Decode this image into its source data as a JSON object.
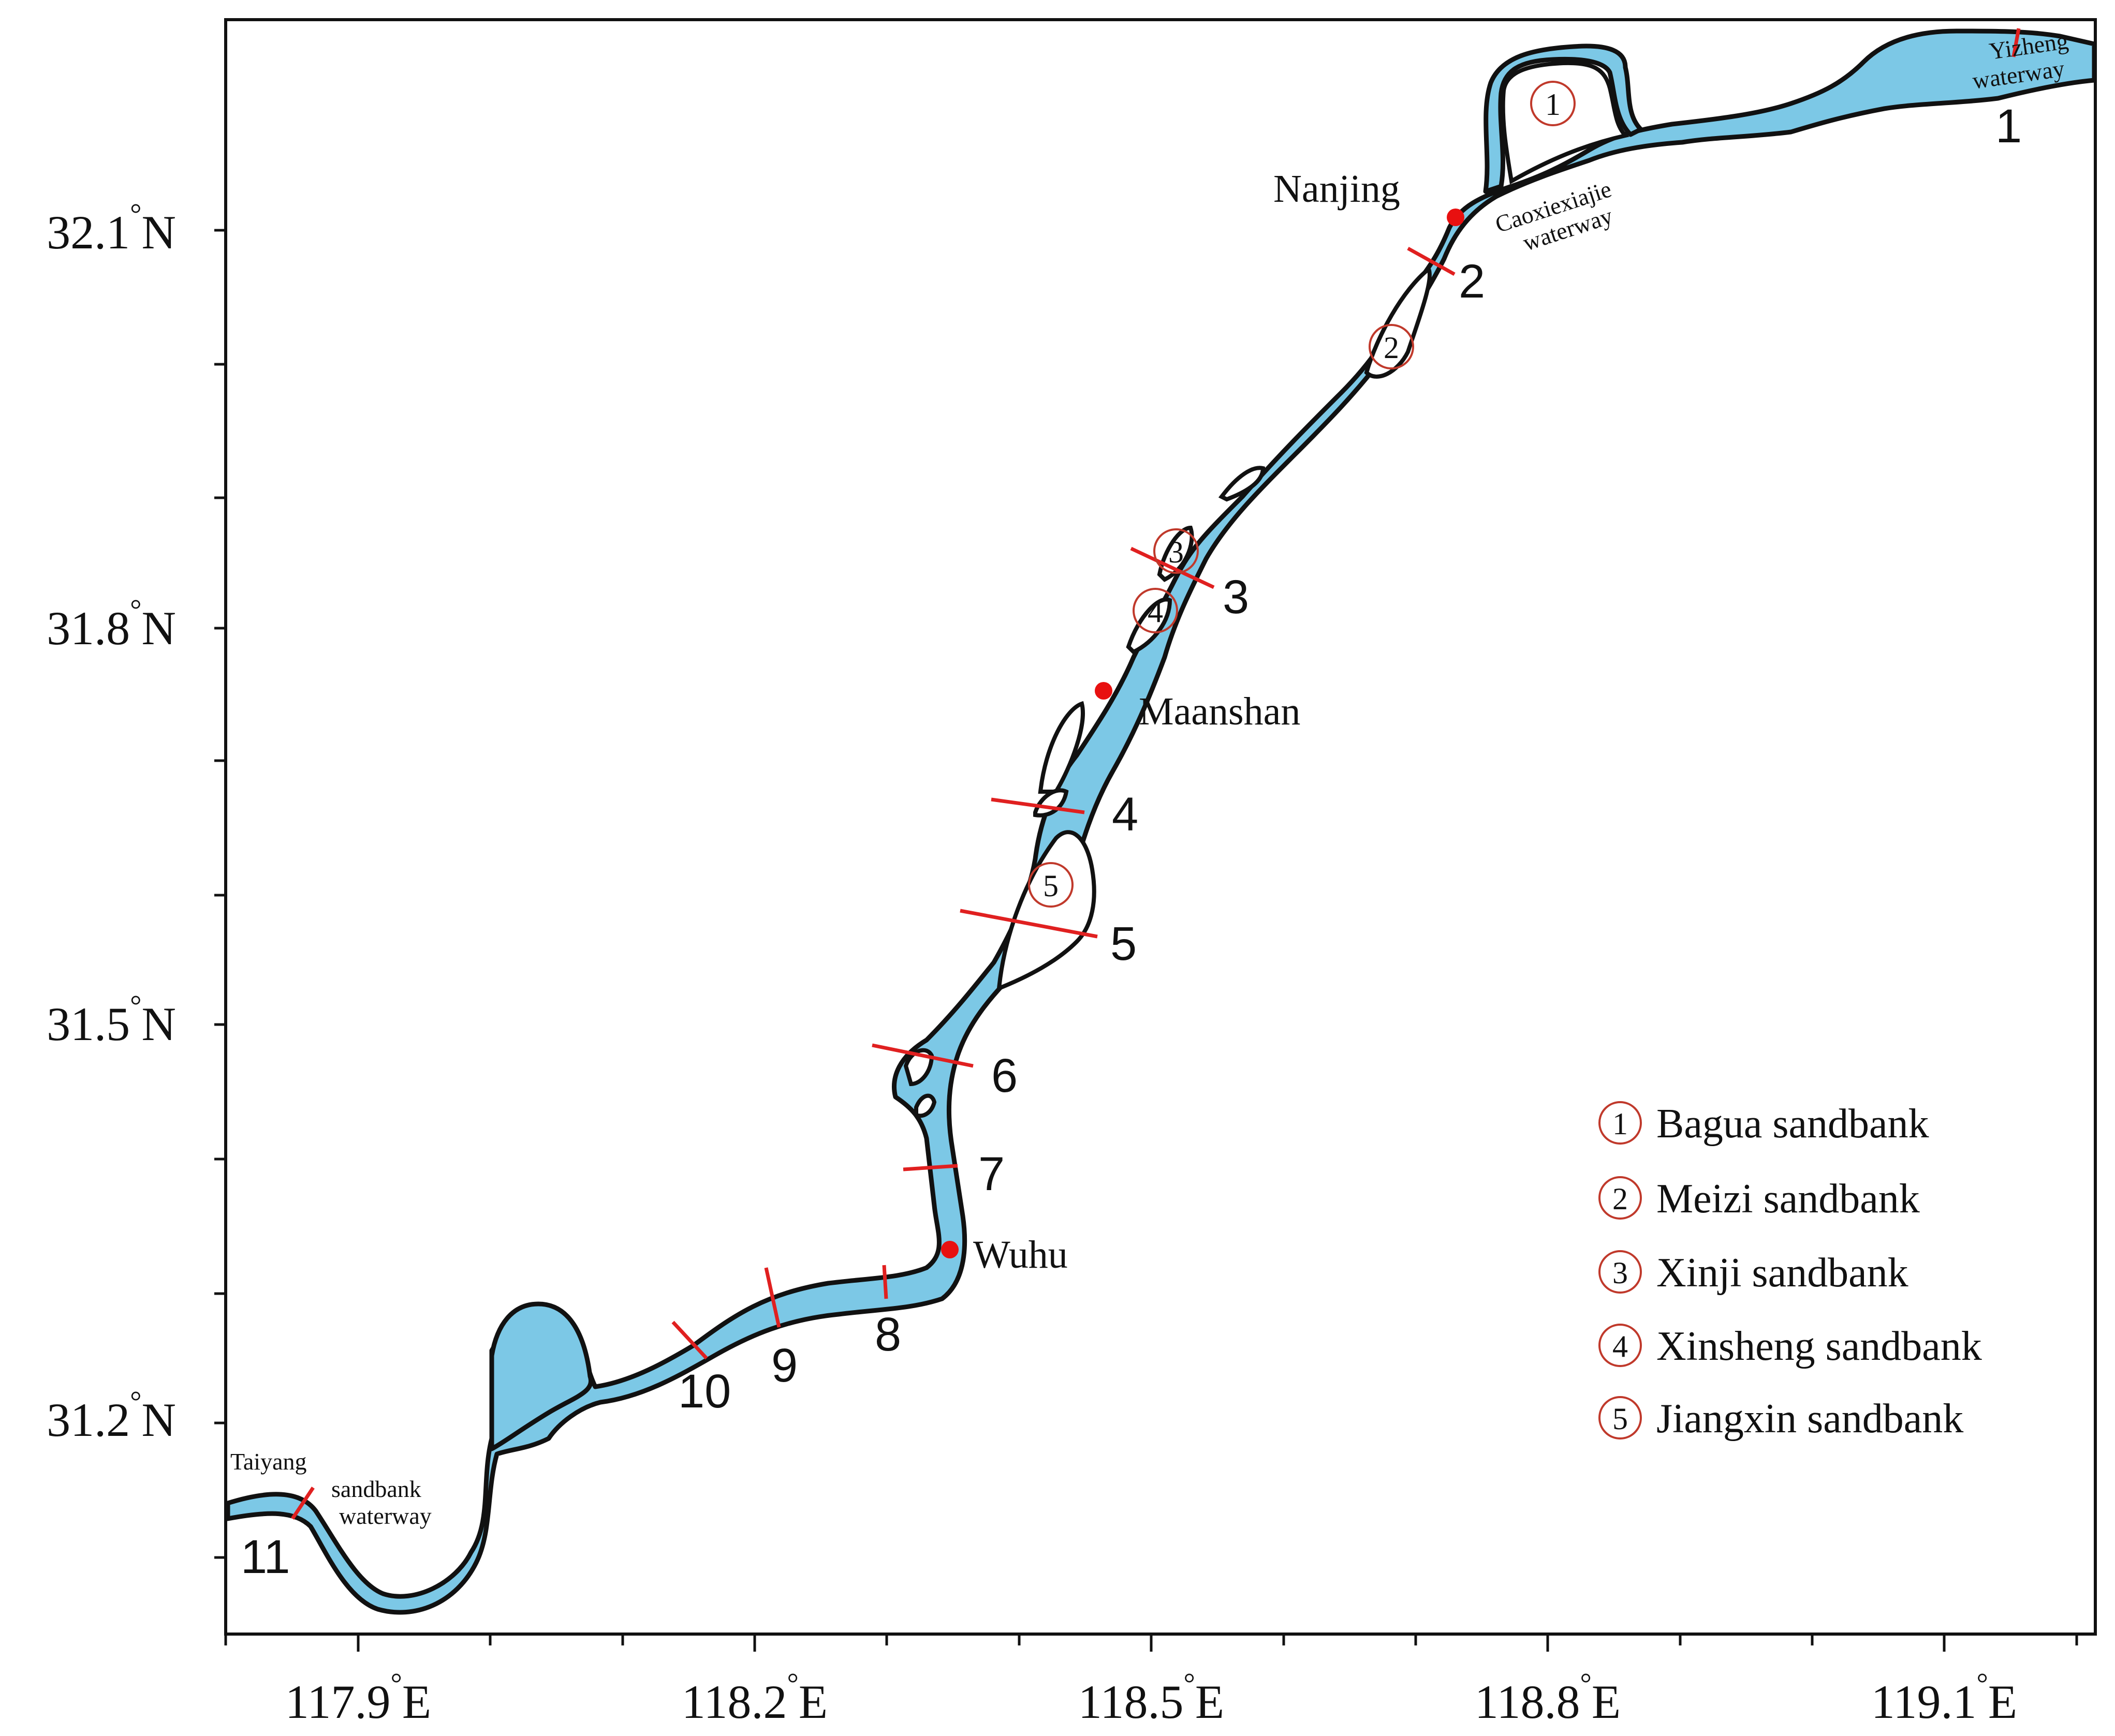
{
  "axes": {
    "x_ticks": [
      {
        "label": "117.9",
        "unit": "E"
      },
      {
        "label": "118.2",
        "unit": "E"
      },
      {
        "label": "118.5",
        "unit": "E"
      },
      {
        "label": "118.8",
        "unit": "E"
      },
      {
        "label": "119.1",
        "unit": "E"
      }
    ],
    "y_ticks": [
      {
        "label": "32.1",
        "unit": "N"
      },
      {
        "label": "31.8",
        "unit": "N"
      },
      {
        "label": "31.5",
        "unit": "N"
      },
      {
        "label": "31.2",
        "unit": "N"
      }
    ],
    "degree_symbol": "°"
  },
  "cities": [
    {
      "name": "Nanjing"
    },
    {
      "name": "Maanshan"
    },
    {
      "name": "Wuhu"
    }
  ],
  "waterways": [
    {
      "line1": "Yizheng",
      "line2": "waterway"
    },
    {
      "line1": "Caoxiexiajie",
      "line2": "waterway"
    },
    {
      "line1": "Taiyang",
      "line2": "sandbank",
      "line3": "waterway"
    }
  ],
  "section_numbers": [
    "1",
    "2",
    "3",
    "4",
    "5",
    "6",
    "7",
    "8",
    "9",
    "10",
    "11"
  ],
  "sandbank_markers": [
    "1",
    "2",
    "3",
    "4",
    "5"
  ],
  "legend": [
    {
      "marker": "1",
      "label": "Bagua sandbank"
    },
    {
      "marker": "2",
      "label": "Meizi sandbank"
    },
    {
      "marker": "3",
      "label": "Xinji sandbank"
    },
    {
      "marker": "4",
      "label": "Xinsheng sandbank"
    },
    {
      "marker": "5",
      "label": "Jiangxin sandbank"
    }
  ],
  "colors": {
    "water": "#7cc8e6",
    "outline": "#111111",
    "section_line": "#e02020",
    "city_dot": "#e81010",
    "marker_circle": "#c0392b"
  }
}
